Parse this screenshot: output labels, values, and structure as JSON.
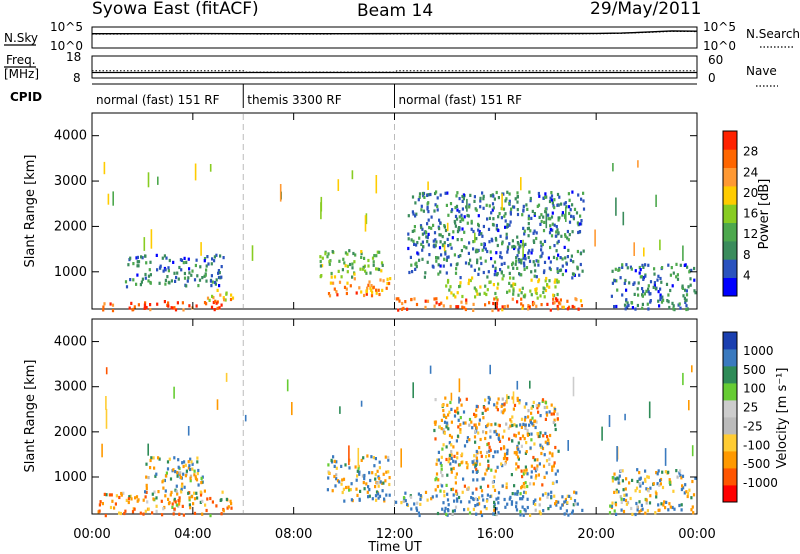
{
  "header": {
    "title": "Syowa East (fitACF)",
    "beam": "Beam 14",
    "date": "29/May/2011"
  },
  "top_panels": {
    "nsky_label": "N.Sky",
    "nsky_ticks": [
      "10^5",
      "10^0"
    ],
    "nsearch_label": "N.Search",
    "nsearch_ticks": [
      "10^5",
      "10^0"
    ],
    "freq_label": "Freq.",
    "freq_unit": "[MHz]",
    "freq_ticks": [
      "18",
      "8"
    ],
    "nave_label": "Nave",
    "nave_ticks": [
      "60",
      "0"
    ],
    "cpid_label": "CPID"
  },
  "cpid_segments": [
    {
      "label": "normal (fast) 151 RF",
      "start_hour": 0,
      "end_hour": 6
    },
    {
      "label": "themis 3300 RF",
      "start_hour": 6,
      "end_hour": 12
    },
    {
      "label": "normal (fast) 151 RF",
      "start_hour": 12,
      "end_hour": 24
    }
  ],
  "x_axis": {
    "label": "Time UT",
    "ticks": [
      "00:00",
      "04:00",
      "08:00",
      "12:00",
      "16:00",
      "20:00",
      "00:00"
    ],
    "tick_hours": [
      0,
      4,
      8,
      12,
      16,
      20,
      24
    ],
    "range_hours": [
      0,
      24
    ]
  },
  "power_panel": {
    "ylabel": "Slant Range [km]",
    "yticks": [
      "1000",
      "2000",
      "3000",
      "4000"
    ],
    "colorbar_label": "Power [dB]",
    "colorbar_ticks": [
      "4",
      "8",
      "12",
      "16",
      "20",
      "24",
      "28"
    ]
  },
  "velocity_panel": {
    "ylabel": "Slant Range [km]",
    "yticks": [
      "1000",
      "2000",
      "3000",
      "4000"
    ],
    "colorbar_label": "Velocity [m s⁻¹]",
    "colorbar_ticks": [
      "1000",
      "500",
      "100",
      "25",
      "-25",
      "-100",
      "-500",
      "-1000"
    ]
  },
  "colors": {
    "power_scale": [
      "#0000ff",
      "#2a52be",
      "#3b8c5c",
      "#4da84d",
      "#88cc22",
      "#ffcc00",
      "#ff9933",
      "#ff6600",
      "#ff2200"
    ],
    "velocity_scale": [
      "#1a3fb0",
      "#3a7abf",
      "#2e8b57",
      "#66cc33",
      "#cccccc",
      "#bbbbbb",
      "#ffcc33",
      "#ff9900",
      "#ff5500",
      "#ff0000"
    ]
  },
  "chart_data": [
    {
      "type": "line",
      "panel": "sky noise / search noise",
      "x_range_hours": [
        0,
        24
      ],
      "y_scale": "log",
      "y_range": [
        1,
        100000
      ],
      "series": [
        {
          "name": "N.Sky",
          "hours": [
            0,
            2,
            4,
            6,
            8,
            10,
            12,
            14,
            16,
            18,
            20,
            21,
            22,
            23,
            24
          ],
          "values": [
            2500,
            2600,
            2700,
            2600,
            2500,
            2600,
            2700,
            2800,
            2800,
            2900,
            3000,
            3500,
            6000,
            12000,
            10000
          ]
        },
        {
          "name": "N.Search",
          "hours": [
            0,
            4,
            8,
            12,
            16,
            20,
            21,
            22,
            23,
            24
          ],
          "values": [
            2000,
            2100,
            2000,
            2200,
            2300,
            2400,
            3000,
            5000,
            9000,
            8000
          ]
        }
      ]
    },
    {
      "type": "line",
      "panel": "frequency / nave",
      "x_range_hours": [
        0,
        24
      ],
      "series": [
        {
          "name": "Freq.",
          "hours": [
            0,
            6,
            6.1,
            12,
            12.1,
            24
          ],
          "values": [
            10.5,
            10.5,
            10.5,
            10.5,
            10.5,
            10.5
          ]
        },
        {
          "name": "Nave",
          "hours": [
            0,
            6,
            6.1,
            12,
            12.1,
            24
          ],
          "values": [
            20,
            20,
            16,
            16,
            20,
            20
          ]
        }
      ]
    },
    {
      "type": "heatmap",
      "panel": "Power",
      "x_range_hours": [
        0,
        24
      ],
      "y_range_km": [
        180,
        4500
      ],
      "value_unit": "dB",
      "clusters": [
        {
          "h_start": 0.4,
          "h_end": 5.4,
          "km_start": 180,
          "km_end": 380,
          "level": 26
        },
        {
          "h_start": 4.5,
          "h_end": 5.6,
          "km_start": 380,
          "km_end": 700,
          "level": 18
        },
        {
          "h_start": 1.3,
          "h_end": 5.2,
          "km_start": 700,
          "km_end": 1400,
          "level": 6
        },
        {
          "h_start": 9.3,
          "h_end": 11.8,
          "km_start": 500,
          "km_end": 900,
          "level": 22
        },
        {
          "h_start": 9.0,
          "h_end": 11.5,
          "km_start": 900,
          "km_end": 1500,
          "level": 12
        },
        {
          "h_start": 12.0,
          "h_end": 19.5,
          "km_start": 180,
          "km_end": 450,
          "level": 24
        },
        {
          "h_start": 14.0,
          "h_end": 18.5,
          "km_start": 450,
          "km_end": 900,
          "level": 14
        },
        {
          "h_start": 12.5,
          "h_end": 19.5,
          "km_start": 900,
          "km_end": 2800,
          "level": 6
        },
        {
          "h_start": 20.5,
          "h_end": 23.9,
          "km_start": 200,
          "km_end": 1200,
          "level": 6
        }
      ]
    },
    {
      "type": "heatmap",
      "panel": "Velocity",
      "x_range_hours": [
        0,
        24
      ],
      "y_range_km": [
        180,
        4500
      ],
      "value_unit": "m s-1",
      "clusters": [
        {
          "h_start": 0.2,
          "h_end": 5.5,
          "km_start": 180,
          "km_end": 700,
          "level": -200
        },
        {
          "h_start": 2.0,
          "h_end": 4.5,
          "km_start": 700,
          "km_end": 1500,
          "level": 0
        },
        {
          "h_start": 9.3,
          "h_end": 11.8,
          "km_start": 500,
          "km_end": 1500,
          "level": 50
        },
        {
          "h_start": 12.0,
          "h_end": 19.5,
          "km_start": 180,
          "km_end": 700,
          "level": 150
        },
        {
          "h_start": 13.5,
          "h_end": 18.5,
          "km_start": 700,
          "km_end": 2800,
          "level": -80
        },
        {
          "h_start": 20.5,
          "h_end": 23.9,
          "km_start": 200,
          "km_end": 1200,
          "level": 0
        }
      ]
    }
  ]
}
